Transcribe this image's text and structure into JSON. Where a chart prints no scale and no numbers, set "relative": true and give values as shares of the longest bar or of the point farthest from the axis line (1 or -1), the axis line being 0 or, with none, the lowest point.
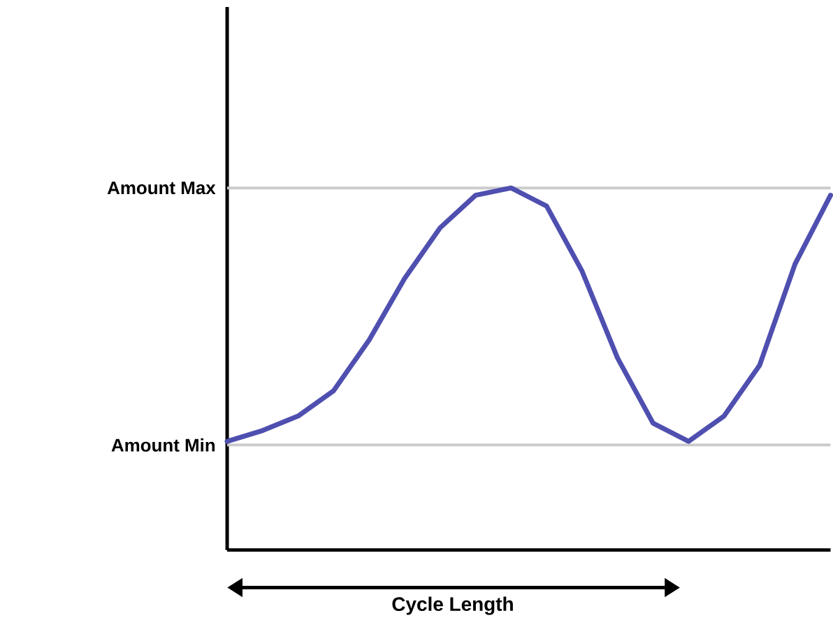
{
  "chart_data": {
    "type": "line",
    "xlabel": "Cycle Length",
    "relative": true,
    "categories": [
      null,
      null,
      null,
      null,
      null,
      null,
      null,
      null,
      null,
      null,
      null,
      null,
      null,
      null,
      null,
      null,
      null,
      null
    ],
    "values": [
      0.3,
      0.33,
      0.37,
      0.44,
      0.58,
      0.75,
      0.89,
      0.98,
      1.0,
      0.95,
      0.77,
      0.53,
      0.35,
      0.3,
      0.37,
      0.51,
      0.79,
      0.98
    ],
    "color": "#4f4fb0",
    "ref_lines": [
      {
        "axis": "y",
        "value": 1.0,
        "label": "Amount Max",
        "color": "#cccccc"
      },
      {
        "axis": "y",
        "value": 0.29,
        "label": "Amount Min",
        "color": "#cccccc"
      }
    ],
    "marker": "none",
    "line_style": "solid"
  }
}
